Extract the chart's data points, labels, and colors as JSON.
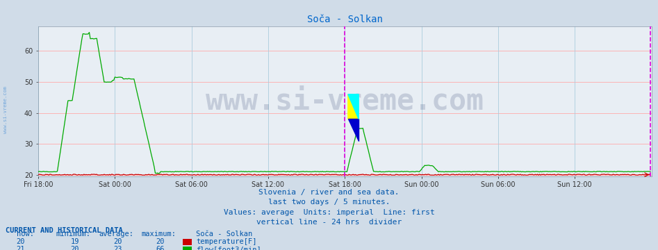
{
  "title": "Soča - Solkan",
  "title_color": "#0066cc",
  "bg_color": "#d0dce8",
  "plot_bg_color": "#e8eef4",
  "grid_color_h": "#ffaaaa",
  "grid_color_v": "#aaccdd",
  "xlim": [
    0,
    576
  ],
  "ylim": [
    19.5,
    68
  ],
  "yticks": [
    20,
    30,
    40,
    50,
    60
  ],
  "xtick_labels": [
    "Fri 18:00",
    "Sat 00:00",
    "Sat 06:00",
    "Sat 12:00",
    "Sat 18:00",
    "Sun 00:00",
    "Sun 06:00",
    "Sun 12:00"
  ],
  "xtick_positions": [
    0,
    72,
    144,
    216,
    288,
    360,
    432,
    504
  ],
  "vline_24h": 288,
  "vline_end": 575,
  "vline_color": "#dd00dd",
  "watermark": "www.si-vreme.com",
  "watermark_color": "#223366",
  "watermark_alpha": 0.18,
  "watermark_fontsize": 30,
  "subtitle1": "Slovenia / river and sea data.",
  "subtitle2": "last two days / 5 minutes.",
  "subtitle3": "Values: average  Units: imperial  Line: first",
  "subtitle4": "vertical line - 24 hrs  divider",
  "subtitle_color": "#0055aa",
  "subtitle_fontsize": 8,
  "table_header": "CURRENT AND HISTORICAL DATA",
  "table_color": "#0055aa",
  "temp_color": "#cc0000",
  "flow_color": "#00aa00",
  "temp_now": 20,
  "temp_min": 19,
  "temp_avg": 20,
  "temp_max": 20,
  "flow_now": 21,
  "flow_min": 20,
  "flow_avg": 23,
  "flow_max": 66
}
